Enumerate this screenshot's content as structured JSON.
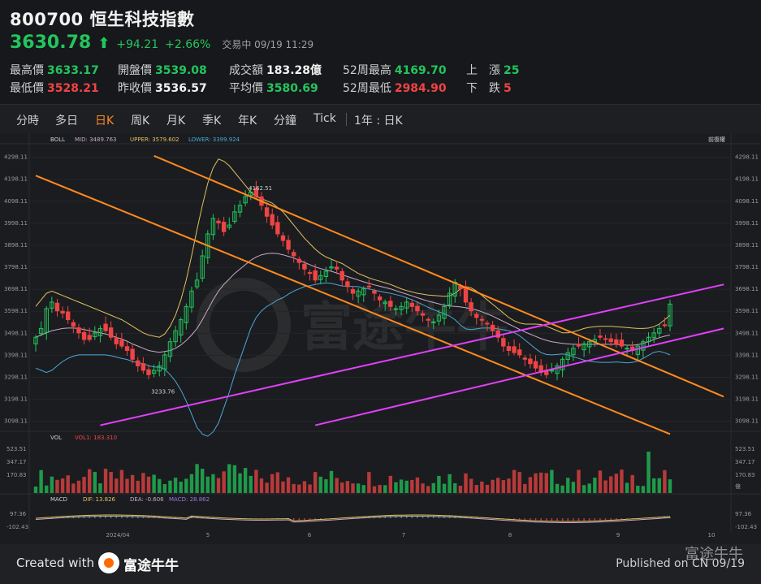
{
  "header": {
    "code": "800700",
    "name": "恒生科技指數",
    "price": "3630.78",
    "arrow": "⬆",
    "change": "+94.21",
    "change_pct": "+2.66%",
    "status": "交易中 09/19 11:29"
  },
  "stats": [
    {
      "label": "最高價",
      "value": "3633.17",
      "color": "#22c55e"
    },
    {
      "label": "開盤價",
      "value": "3539.08",
      "color": "#22c55e"
    },
    {
      "label": "成交額",
      "value": "183.28億",
      "color": "#f2f2f2"
    },
    {
      "label": "52周最高",
      "value": "4169.70",
      "color": "#22c55e"
    },
    {
      "label": "上　漲",
      "value": "25",
      "color": "#22c55e"
    },
    {
      "label": "最低價",
      "value": "3528.21",
      "color": "#ef4444"
    },
    {
      "label": "昨收價",
      "value": "3536.57",
      "color": "#f2f2f2"
    },
    {
      "label": "平均價",
      "value": "3580.69",
      "color": "#22c55e"
    },
    {
      "label": "52周最低",
      "value": "2984.90",
      "color": "#ef4444"
    },
    {
      "label": "下　跌",
      "value": "5",
      "color": "#ef4444"
    }
  ],
  "tabs": [
    "分時",
    "多日",
    "日K",
    "周K",
    "月K",
    "季K",
    "年K",
    "分鐘",
    "Tick"
  ],
  "active_tab": "日K",
  "range_label": "1年 : 日K",
  "footer": {
    "created_with": "Created with",
    "brand": "富途牛牛",
    "published": "Published on CN 09/19",
    "watermark": "富途牛牛"
  },
  "colors": {
    "up": "#22c55e",
    "down": "#ef4444",
    "orange": "#ff8a1f",
    "magenta": "#e040fb",
    "mid": "#c9a9c9",
    "upper": "#e0c060",
    "lower": "#4aa8d8"
  },
  "chart_data": [
    {
      "type": "candlestick",
      "title": "",
      "indicator": "BOLL",
      "indicator_labels": [
        {
          "name": "MID",
          "value": "3489.763"
        },
        {
          "name": "UPPER",
          "value": "3579.602"
        },
        {
          "name": "LOWER",
          "value": "3399.924"
        }
      ],
      "right_label": "前復權",
      "y_ticks": [
        4298.11,
        4198.11,
        4098.11,
        3998.11,
        3898.11,
        3798.11,
        3698.11,
        3598.11,
        3498.11,
        3398.11,
        3298.11,
        3198.11,
        3098.11
      ],
      "ylim": [
        3060,
        4330
      ],
      "x_labels": [
        "2024/04",
        "5",
        "6",
        "7",
        "8",
        "9",
        "10"
      ],
      "annotations": [
        {
          "text": "4162.51"
        },
        {
          "text": "3233.76"
        }
      ],
      "close": [
        3480,
        3520,
        3610,
        3640,
        3600,
        3590,
        3560,
        3530,
        3500,
        3470,
        3470,
        3500,
        3520,
        3510,
        3480,
        3450,
        3440,
        3420,
        3380,
        3350,
        3330,
        3310,
        3330,
        3350,
        3400,
        3460,
        3510,
        3560,
        3620,
        3690,
        3740,
        3850,
        3950,
        4020,
        4000,
        3960,
        3990,
        4050,
        4080,
        4120,
        4140,
        4120,
        4080,
        4030,
        3990,
        3950,
        3920,
        3880,
        3850,
        3820,
        3790,
        3770,
        3740,
        3760,
        3780,
        3800,
        3790,
        3740,
        3710,
        3680,
        3690,
        3700,
        3710,
        3680,
        3650,
        3640,
        3620,
        3610,
        3620,
        3640,
        3620,
        3600,
        3580,
        3560,
        3550,
        3580,
        3620,
        3680,
        3730,
        3700,
        3640,
        3600,
        3570,
        3560,
        3540,
        3510,
        3480,
        3440,
        3420,
        3410,
        3400,
        3380,
        3360,
        3340,
        3320,
        3310,
        3330,
        3350,
        3380,
        3410,
        3430,
        3440,
        3450,
        3460,
        3470,
        3480,
        3470,
        3460,
        3450,
        3440,
        3430,
        3420,
        3440,
        3460,
        3480,
        3500,
        3520,
        3536,
        3631
      ],
      "mid": [
        3480,
        3490,
        3500,
        3510,
        3515,
        3520,
        3522,
        3522,
        3520,
        3515,
        3510,
        3505,
        3500,
        3495,
        3488,
        3480,
        3472,
        3462,
        3450,
        3440,
        3430,
        3420,
        3415,
        3412,
        3415,
        3420,
        3430,
        3445,
        3465,
        3490,
        3520,
        3560,
        3605,
        3650,
        3690,
        3720,
        3745,
        3770,
        3790,
        3810,
        3830,
        3845,
        3855,
        3860,
        3862,
        3860,
        3855,
        3848,
        3840,
        3830,
        3820,
        3810,
        3800,
        3792,
        3786,
        3780,
        3772,
        3764,
        3756,
        3748,
        3740,
        3732,
        3725,
        3718,
        3712,
        3706,
        3700,
        3692,
        3684,
        3676,
        3668,
        3660,
        3652,
        3644,
        3638,
        3632,
        3626,
        3622,
        3620,
        3618,
        3614,
        3610,
        3604,
        3596,
        3586,
        3576,
        3564,
        3552,
        3540,
        3528,
        3516,
        3504,
        3494,
        3484,
        3474,
        3466,
        3460,
        3456,
        3452,
        3450,
        3448,
        3448,
        3448,
        3448,
        3448,
        3448,
        3448,
        3448,
        3448,
        3446,
        3444,
        3444,
        3446,
        3452,
        3460,
        3470,
        3478,
        3485,
        3490
      ],
      "upper": [
        3620,
        3650,
        3680,
        3690,
        3680,
        3670,
        3660,
        3650,
        3640,
        3630,
        3620,
        3610,
        3600,
        3590,
        3580,
        3570,
        3560,
        3545,
        3530,
        3515,
        3500,
        3490,
        3485,
        3480,
        3495,
        3530,
        3580,
        3650,
        3740,
        3850,
        3970,
        4080,
        4180,
        4250,
        4290,
        4280,
        4260,
        4230,
        4200,
        4170,
        4140,
        4120,
        4110,
        4100,
        4090,
        4070,
        4050,
        4020,
        3990,
        3960,
        3930,
        3905,
        3880,
        3860,
        3845,
        3835,
        3825,
        3815,
        3800,
        3785,
        3770,
        3760,
        3750,
        3742,
        3735,
        3728,
        3720,
        3710,
        3700,
        3692,
        3686,
        3680,
        3676,
        3672,
        3670,
        3668,
        3666,
        3668,
        3680,
        3700,
        3710,
        3705,
        3690,
        3670,
        3650,
        3630,
        3610,
        3590,
        3570,
        3555,
        3545,
        3540,
        3540,
        3540,
        3538,
        3530,
        3520,
        3510,
        3500,
        3500,
        3505,
        3512,
        3520,
        3525,
        3528,
        3530,
        3530,
        3530,
        3528,
        3526,
        3524,
        3522,
        3520,
        3520,
        3522,
        3528,
        3540,
        3560,
        3580
      ],
      "lower": [
        3340,
        3330,
        3320,
        3330,
        3350,
        3370,
        3384,
        3394,
        3400,
        3400,
        3400,
        3400,
        3400,
        3400,
        3396,
        3390,
        3384,
        3379,
        3370,
        3365,
        3360,
        3350,
        3345,
        3344,
        3335,
        3310,
        3280,
        3240,
        3190,
        3130,
        3070,
        3040,
        3030,
        3050,
        3090,
        3160,
        3230,
        3310,
        3380,
        3450,
        3520,
        3570,
        3600,
        3620,
        3634,
        3650,
        3660,
        3676,
        3690,
        3700,
        3710,
        3715,
        3720,
        3724,
        3727,
        3725,
        3719,
        3713,
        3712,
        3711,
        3710,
        3704,
        3700,
        3694,
        3689,
        3684,
        3680,
        3674,
        3668,
        3660,
        3650,
        3640,
        3628,
        3616,
        3606,
        3596,
        3586,
        3576,
        3560,
        3536,
        3518,
        3515,
        3518,
        3522,
        3522,
        3522,
        3518,
        3514,
        3510,
        3501,
        3487,
        3468,
        3448,
        3428,
        3410,
        3402,
        3400,
        3402,
        3404,
        3400,
        3391,
        3384,
        3376,
        3371,
        3368,
        3366,
        3366,
        3366,
        3368,
        3366,
        3364,
        3366,
        3372,
        3384,
        3398,
        3412,
        3416,
        3410,
        3400
      ],
      "channels": [
        {
          "color": "orange",
          "points": [
            [
              0,
              4215
            ],
            [
              118,
              3040
            ]
          ]
        },
        {
          "color": "orange",
          "points": [
            [
              22,
              4305
            ],
            [
              128,
              3210
            ]
          ]
        },
        {
          "color": "magenta",
          "points": [
            [
              12,
              3080
            ],
            [
              128,
              3720
            ]
          ]
        },
        {
          "color": "magenta",
          "points": [
            [
              52,
              3080
            ],
            [
              128,
              3520
            ]
          ]
        }
      ]
    },
    {
      "type": "bar",
      "title": "",
      "indicator": "VOL",
      "indicator_labels": [
        {
          "name": "VOL1",
          "value": "183.310"
        }
      ],
      "y_ticks_labels": [
        "523.51",
        "347.17",
        "170.83"
      ],
      "unit": "億"
    },
    {
      "type": "line",
      "title": "",
      "indicator": "MACD",
      "indicator_labels": [
        {
          "name": "DIF",
          "value": "13.826"
        },
        {
          "name": "DEA",
          "value": "-0.606"
        },
        {
          "name": "MACD",
          "value": "28.862"
        }
      ],
      "y_ticks_labels": [
        "97.36",
        "-102.43"
      ]
    }
  ]
}
